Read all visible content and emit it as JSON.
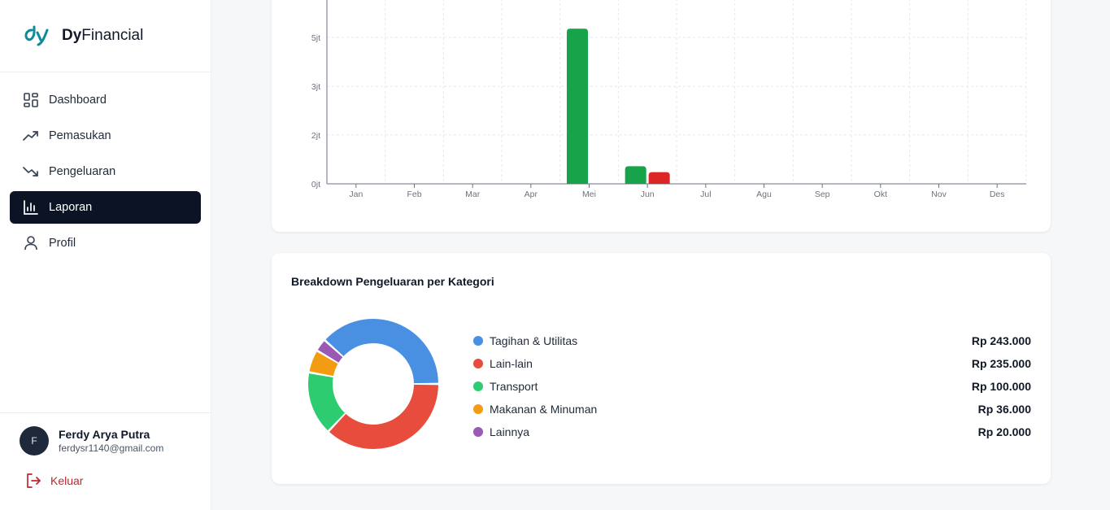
{
  "brand": {
    "bold": "Dy",
    "rest": "Financial"
  },
  "nav": [
    {
      "label": "Dashboard",
      "icon": "grid-icon",
      "active": false
    },
    {
      "label": "Pemasukan",
      "icon": "trending-up-icon",
      "active": false
    },
    {
      "label": "Pengeluaran",
      "icon": "trending-down-icon",
      "active": false
    },
    {
      "label": "Laporan",
      "icon": "bar-chart-icon",
      "active": true
    },
    {
      "label": "Profil",
      "icon": "user-icon",
      "active": false
    }
  ],
  "user": {
    "initial": "F",
    "name": "Ferdy Arya Putra",
    "email": "ferdysr1140@gmail.com"
  },
  "logout_label": "Keluar",
  "colors": {
    "income": "#16a34a",
    "expense": "#dc2626",
    "active_nav": "#0b1324"
  },
  "chart_data": [
    {
      "type": "bar",
      "categories": [
        "Jan",
        "Feb",
        "Mar",
        "Apr",
        "Mei",
        "Jun",
        "Jul",
        "Agu",
        "Sep",
        "Okt",
        "Nov",
        "Des"
      ],
      "yticks": [
        {
          "value": 0,
          "label": "0jt"
        },
        {
          "value": 1.67,
          "label": "2jt"
        },
        {
          "value": 3.33,
          "label": "3jt"
        },
        {
          "value": 5,
          "label": "5jt"
        }
      ],
      "ylim": [
        0,
        6.7
      ],
      "grid": true,
      "series": [
        {
          "values": [
            0,
            0,
            0,
            0,
            5.3,
            0.6,
            0,
            0,
            0,
            0,
            0,
            0
          ],
          "color": "#16a34a"
        },
        {
          "values": [
            0,
            0,
            0,
            0,
            0,
            0.4,
            0,
            0,
            0,
            0,
            0,
            0
          ],
          "color": "#dc2626"
        }
      ]
    },
    {
      "type": "pie",
      "title": "Breakdown Pengeluaran per Kategori",
      "slices": [
        {
          "label": "Tagihan & Utilitas",
          "value": 243000,
          "display": "Rp 243.000",
          "color": "#4a90e2"
        },
        {
          "label": "Lain-lain",
          "value": 235000,
          "display": "Rp 235.000",
          "color": "#e74c3c"
        },
        {
          "label": "Transport",
          "value": 100000,
          "display": "Rp 100.000",
          "color": "#2ecc71"
        },
        {
          "label": "Makanan & Minuman",
          "value": 36000,
          "display": "Rp 36.000",
          "color": "#f39c12"
        },
        {
          "label": "Lainnya",
          "value": 20000,
          "display": "Rp 20.000",
          "color": "#9b59b6"
        }
      ]
    }
  ]
}
